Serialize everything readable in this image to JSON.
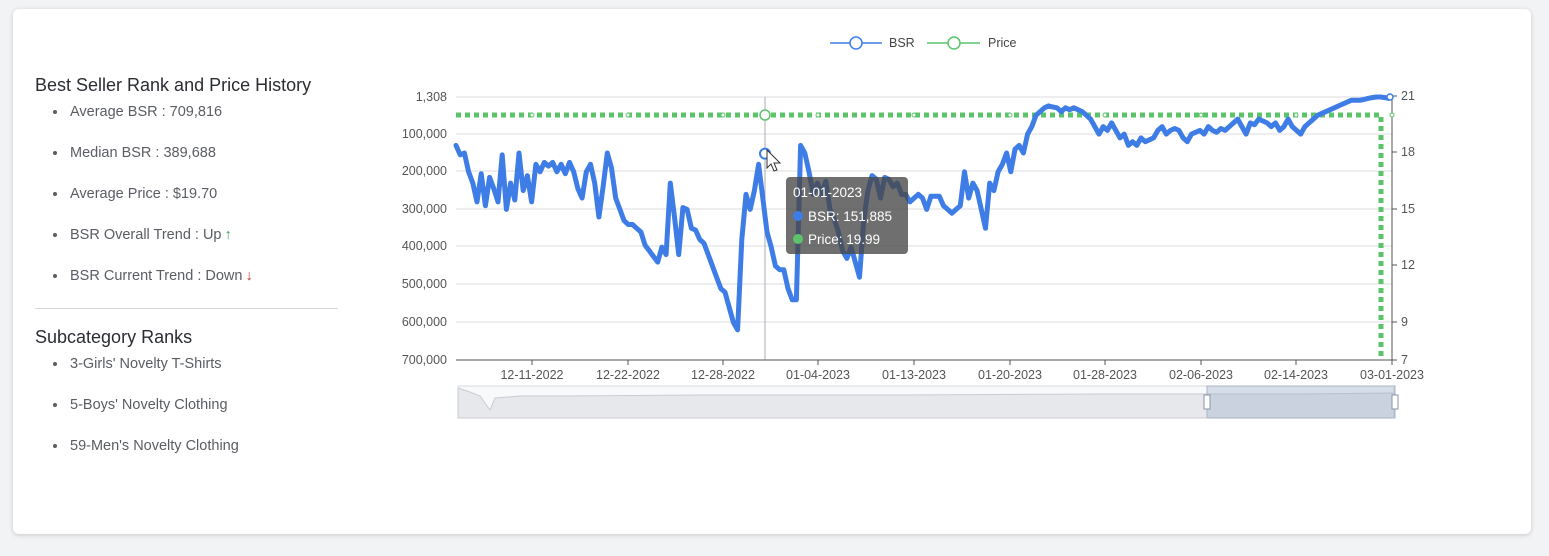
{
  "panel": {
    "title": "Best Seller Rank and Price History",
    "stats": [
      {
        "label": "Average BSR",
        "value": "709,816"
      },
      {
        "label": "Median BSR",
        "value": "389,688"
      },
      {
        "label": "Average Price",
        "value": "$19.70"
      },
      {
        "label": "BSR Overall Trend",
        "value": "Up",
        "arrow": "↑",
        "arrow_color": "#2ea44f"
      },
      {
        "label": "BSR Current Trend",
        "value": "Down",
        "arrow": "↓",
        "arrow_color": "#c93c3c"
      }
    ],
    "subcategory_title": "Subcategory Ranks",
    "subcategories": [
      "3-Girls' Novelty T-Shirts",
      "5-Boys' Novelty Clothing",
      "59-Men's Novelty Clothing"
    ]
  },
  "chart_data": {
    "type": "line",
    "legend": {
      "position": "top-center",
      "entries": [
        "BSR",
        "Price"
      ]
    },
    "colors": {
      "bsr": "#3f7de6",
      "price": "#5bc46a"
    },
    "x_ticks": [
      "12-11-2022",
      "12-22-2022",
      "12-28-2022",
      "01-04-2023",
      "01-13-2023",
      "01-20-2023",
      "01-28-2023",
      "02-06-2023",
      "02-14-2023",
      "03-01-2023"
    ],
    "y_left": {
      "ticks": [
        "1,308",
        "100,000",
        "200,000",
        "300,000",
        "400,000",
        "500,000",
        "600,000",
        "700,000"
      ],
      "inverted": true,
      "range": [
        1308,
        700000
      ]
    },
    "y_right": {
      "ticks": [
        "21",
        "18",
        "15",
        "12",
        "9",
        "7"
      ],
      "range": [
        7,
        21
      ]
    },
    "grid": true,
    "series": [
      {
        "name": "BSR",
        "values": [
          130000,
          155000,
          150000,
          200000,
          230000,
          280000,
          205000,
          290000,
          215000,
          245000,
          280000,
          155000,
          300000,
          230000,
          275000,
          150000,
          250000,
          210000,
          280000,
          180000,
          200000,
          175000,
          185000,
          175000,
          200000,
          180000,
          205000,
          175000,
          200000,
          245000,
          270000,
          200000,
          180000,
          230000,
          320000,
          240000,
          150000,
          190000,
          270000,
          300000,
          330000,
          340000,
          340000,
          350000,
          360000,
          395000,
          410000,
          425000,
          440000,
          400000,
          420000,
          230000,
          320000,
          420000,
          295000,
          300000,
          350000,
          355000,
          380000,
          390000,
          420000,
          450000,
          480000,
          510000,
          520000,
          560000,
          600000,
          620000,
          380000,
          260000,
          300000,
          250000,
          180000,
          270000,
          360000,
          400000,
          450000,
          460000,
          460000,
          510000,
          540000,
          540000,
          130000,
          150000,
          200000,
          260000,
          230000,
          260000,
          225000,
          300000,
          325000,
          360000,
          410000,
          430000,
          400000,
          440000,
          480000,
          330000,
          250000,
          210000,
          220000,
          270000,
          215000,
          220000,
          240000,
          230000,
          260000,
          260000,
          280000,
          270000,
          260000,
          270000,
          300000,
          265000,
          265000,
          265000,
          290000,
          300000,
          310000,
          300000,
          290000,
          200000,
          270000,
          230000,
          250000,
          300000,
          350000,
          230000,
          250000,
          200000,
          180000,
          150000,
          200000,
          140000,
          130000,
          150000,
          100000,
          80000,
          50000,
          40000,
          30000,
          25000,
          28000,
          30000,
          40000,
          30000,
          35000,
          30000,
          35000,
          40000,
          50000,
          60000,
          80000,
          100000,
          80000,
          90000,
          70000,
          90000,
          110000,
          100000,
          130000,
          120000,
          130000,
          110000,
          120000,
          115000,
          110000,
          90000,
          80000,
          100000,
          90000,
          85000,
          90000,
          110000,
          120000,
          100000,
          95000,
          90000,
          100000,
          80000,
          90000,
          95000,
          85000,
          90000,
          80000,
          70000,
          60000,
          80000,
          100000,
          70000,
          75000,
          60000,
          65000,
          70000,
          80000,
          70000,
          90000,
          80000,
          60000,
          80000,
          90000,
          100000,
          80000,
          70000,
          60000,
          50000,
          45000,
          40000,
          35000,
          30000,
          25000,
          20000,
          15000,
          10000,
          10000,
          10000,
          8000,
          5000,
          3000,
          1308,
          1308,
          3000,
          5000
        ]
      },
      {
        "name": "Price",
        "values": [
          19.99,
          19.99,
          19.99,
          19.99,
          19.99,
          19.99,
          19.99,
          19.99,
          19.99,
          19.99,
          19.99,
          7
        ]
      }
    ],
    "tooltip": {
      "date": "01-01-2023",
      "bsr_label": "BSR",
      "bsr_value": "151,885",
      "price_label": "Price",
      "price_value": "19.99"
    }
  }
}
